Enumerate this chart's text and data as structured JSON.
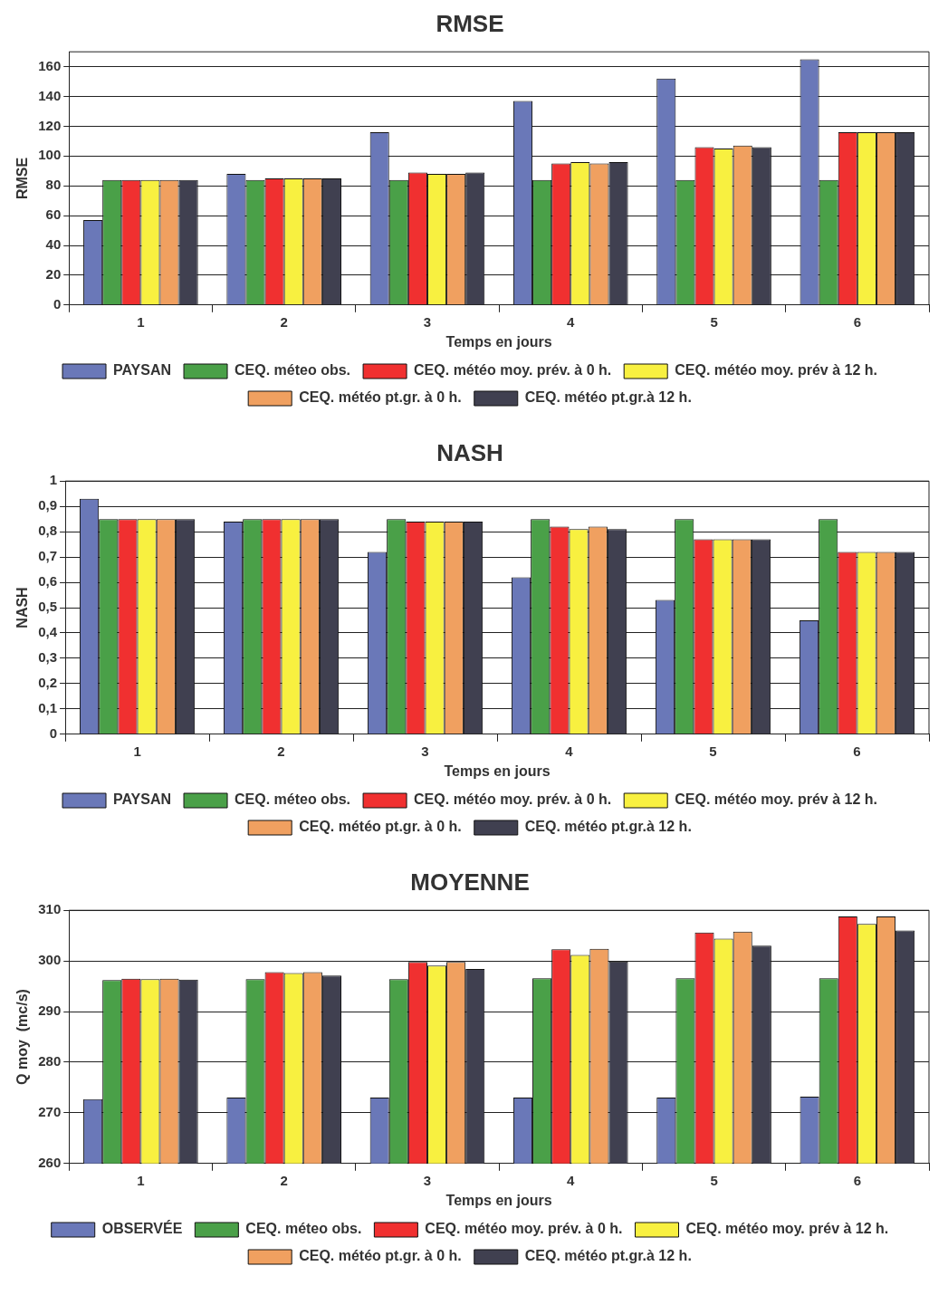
{
  "chart_data": [
    {
      "type": "bar",
      "title": "RMSE",
      "xlabel": "Temps en jours",
      "ylabel": "RMSE",
      "categories": [
        "1",
        "2",
        "3",
        "4",
        "5",
        "6"
      ],
      "ylim": [
        0,
        170
      ],
      "yticks": [
        0,
        20,
        40,
        60,
        80,
        100,
        120,
        140,
        160
      ],
      "grid": "y",
      "legend": "bottom",
      "series": [
        {
          "name": "PAYSAN",
          "color": "#6a78b8",
          "values": [
            57,
            88,
            116,
            137,
            152,
            165
          ]
        },
        {
          "name": "CEQ. méteo obs.",
          "color": "#4aa048",
          "values": [
            84,
            84,
            84,
            84,
            84,
            84
          ]
        },
        {
          "name": "CEQ. météo moy. prév. à 0 h.",
          "color": "#f03030",
          "values": [
            84,
            85,
            89,
            95,
            106,
            116
          ]
        },
        {
          "name": "CEQ. météo moy. prév à 12 h.",
          "color": "#f8f040",
          "values": [
            84,
            85,
            88,
            96,
            105,
            116
          ]
        },
        {
          "name": "CEQ. météo pt.gr. à 0 h.",
          "color": "#f0a060",
          "values": [
            84,
            85,
            88,
            95,
            107,
            116
          ]
        },
        {
          "name": "CEQ. météo pt.gr.à 12 h.",
          "color": "#404050",
          "values": [
            84,
            85,
            89,
            96,
            106,
            116
          ]
        }
      ]
    },
    {
      "type": "bar",
      "title": "NASH",
      "xlabel": "Temps en jours",
      "ylabel": "NASH",
      "categories": [
        "1",
        "2",
        "3",
        "4",
        "5",
        "6"
      ],
      "ylim": [
        0,
        1
      ],
      "yticks": [
        0,
        {
          "value": 0.1,
          "label": "0,1"
        },
        {
          "value": 0.2,
          "label": "0,2"
        },
        {
          "value": 0.3,
          "label": "0,3"
        },
        {
          "value": 0.4,
          "label": "0,4"
        },
        {
          "value": 0.5,
          "label": "0,5"
        },
        {
          "value": 0.6,
          "label": "0,6"
        },
        {
          "value": 0.7,
          "label": "0,7"
        },
        {
          "value": 0.8,
          "label": "0,8"
        },
        {
          "value": 0.9,
          "label": "0,9"
        },
        1
      ],
      "grid": "y",
      "legend": "bottom",
      "series": [
        {
          "name": "PAYSAN",
          "color": "#6a78b8",
          "values": [
            0.93,
            0.84,
            0.72,
            0.62,
            0.53,
            0.45
          ]
        },
        {
          "name": "CEQ. méteo obs.",
          "color": "#4aa048",
          "values": [
            0.85,
            0.85,
            0.85,
            0.85,
            0.85,
            0.85
          ]
        },
        {
          "name": "CEQ. météo moy. prév. à 0 h.",
          "color": "#f03030",
          "values": [
            0.85,
            0.85,
            0.84,
            0.82,
            0.77,
            0.72
          ]
        },
        {
          "name": "CEQ. météo moy. prév à 12 h.",
          "color": "#f8f040",
          "values": [
            0.85,
            0.85,
            0.84,
            0.81,
            0.77,
            0.72
          ]
        },
        {
          "name": "CEQ. météo pt.gr. à 0 h.",
          "color": "#f0a060",
          "values": [
            0.85,
            0.85,
            0.84,
            0.82,
            0.77,
            0.72
          ]
        },
        {
          "name": "CEQ. météo pt.gr.à 12 h.",
          "color": "#404050",
          "values": [
            0.85,
            0.85,
            0.84,
            0.81,
            0.77,
            0.72
          ]
        }
      ]
    },
    {
      "type": "bar",
      "title": "MOYENNE",
      "xlabel": "Temps en jours",
      "ylabel": "Q moy  (mc/s)",
      "categories": [
        "1",
        "2",
        "3",
        "4",
        "5",
        "6"
      ],
      "ylim": [
        260,
        310
      ],
      "yticks": [
        260,
        270,
        280,
        290,
        300,
        310
      ],
      "grid": "y",
      "legend": "bottom",
      "series": [
        {
          "name": "OBSERVÉE",
          "color": "#6a78b8",
          "values": [
            272.7,
            273,
            273,
            273,
            273,
            273.2
          ]
        },
        {
          "name": "CEQ. méteo obs.",
          "color": "#4aa048",
          "values": [
            296.2,
            296.4,
            296.4,
            296.6,
            296.6,
            296.6
          ]
        },
        {
          "name": "CEQ. météo moy. prév. à 0 h.",
          "color": "#f03030",
          "values": [
            296.5,
            297.8,
            299.8,
            302.3,
            305.6,
            308.8
          ]
        },
        {
          "name": "CEQ. météo moy. prév à 12 h.",
          "color": "#f8f040",
          "values": [
            296.4,
            297.6,
            299.1,
            301.2,
            304.4,
            307.3
          ]
        },
        {
          "name": "CEQ. météo pt.gr. à 0 h.",
          "color": "#f0a060",
          "values": [
            296.5,
            297.8,
            299.8,
            302.4,
            305.8,
            308.8
          ]
        },
        {
          "name": "CEQ. météo pt.gr.à 12 h.",
          "color": "#404050",
          "values": [
            296.3,
            297.1,
            298.4,
            299.9,
            303,
            306
          ]
        }
      ]
    }
  ]
}
